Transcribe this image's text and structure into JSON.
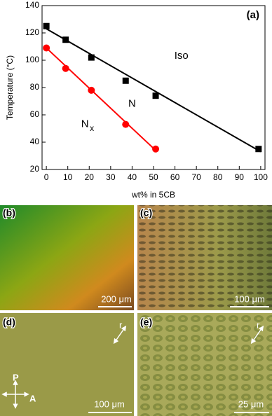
{
  "chart_data": {
    "type": "scatter",
    "panel_label": "(a)",
    "xlabel": "wt% in 5CB",
    "ylabel": "Temperature (°C)",
    "xlim": [
      -2,
      102
    ],
    "ylim": [
      20,
      140
    ],
    "xticks": [
      0,
      10,
      20,
      30,
      40,
      50,
      60,
      70,
      80,
      90,
      100
    ],
    "yticks": [
      20,
      40,
      60,
      80,
      100,
      120,
      140
    ],
    "series": [
      {
        "color": "#000000",
        "marker": "square",
        "x": [
          0,
          9,
          21,
          37,
          51,
          99
        ],
        "values": [
          125,
          115,
          102,
          85,
          74,
          35
        ]
      },
      {
        "color": "#000000",
        "marker": "line",
        "x": [
          0,
          100
        ],
        "values": [
          123,
          33
        ]
      },
      {
        "color": "#ff0000",
        "marker": "circle",
        "x": [
          0,
          9,
          21,
          37,
          51
        ],
        "values": [
          109,
          94,
          78,
          53,
          35
        ]
      },
      {
        "color": "#ff0000",
        "marker": "line",
        "x": [
          0,
          51
        ],
        "values": [
          109,
          34
        ]
      }
    ],
    "annotations": [
      {
        "text": "Iso",
        "x": 63,
        "y": 103
      },
      {
        "text": "N",
        "x": 40,
        "y": 68
      },
      {
        "text": "N",
        "sub": "x",
        "x": 18,
        "y": 53
      }
    ]
  },
  "images": [
    {
      "label": "(b)",
      "scale": "200 μm"
    },
    {
      "label": "(c)",
      "scale": "100 μm"
    },
    {
      "label": "(d)",
      "scale": "100 μm",
      "direction": "r",
      "polarizer": "P",
      "analyzer": "A"
    },
    {
      "label": "(e)",
      "scale": "25 μm",
      "direction": "r"
    }
  ]
}
